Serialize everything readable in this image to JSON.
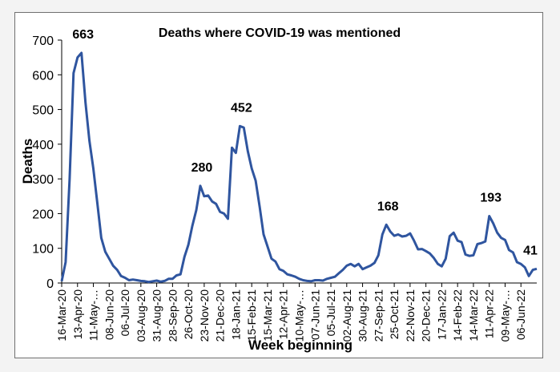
{
  "chart_data": {
    "type": "line",
    "title": "Deaths where COVID-19 was mentioned",
    "xlabel": "Week beginning",
    "ylabel": "Deaths",
    "ylim": [
      0,
      700
    ],
    "yticks": [
      0,
      100,
      200,
      300,
      400,
      500,
      600,
      700
    ],
    "grid": false,
    "legend": "none",
    "line_color": "#2f559f",
    "x_tick_labels": [
      "16-Mar-20",
      "13-Apr-20",
      "11-May-…",
      "08-Jun-20",
      "06-Jul-20",
      "03-Aug-20",
      "31-Aug-20",
      "28-Sep-20",
      "26-Oct-20",
      "23-Nov-20",
      "21-Dec-20",
      "18-Jan-21",
      "15-Feb-21",
      "15-Mar-21",
      "12-Apr-21",
      "10-May-…",
      "07-Jun-21",
      "05-Jul-21",
      "02-Aug-21",
      "30-Aug-21",
      "27-Sep-21",
      "25-Oct-21",
      "22-Nov-21",
      "20-Dec-21",
      "17-Jan-22",
      "14-Feb-22",
      "14-Mar-22",
      "11-Apr-22",
      "09-May-…",
      "06-Jun-22"
    ],
    "series": [
      {
        "name": "Deaths",
        "values": [
          5,
          60,
          300,
          605,
          650,
          663,
          520,
          410,
          330,
          230,
          130,
          90,
          70,
          50,
          38,
          20,
          15,
          8,
          10,
          8,
          6,
          5,
          3,
          5,
          7,
          4,
          6,
          12,
          12,
          22,
          25,
          75,
          110,
          165,
          210,
          280,
          250,
          252,
          235,
          228,
          205,
          200,
          185,
          390,
          375,
          452,
          448,
          380,
          330,
          295,
          220,
          140,
          105,
          70,
          62,
          40,
          35,
          25,
          22,
          18,
          12,
          8,
          6,
          5,
          8,
          8,
          7,
          12,
          15,
          18,
          28,
          38,
          50,
          55,
          48,
          55,
          40,
          45,
          50,
          58,
          80,
          140,
          168,
          148,
          136,
          140,
          134,
          136,
          143,
          122,
          97,
          98,
          92,
          85,
          72,
          55,
          48,
          70,
          135,
          145,
          122,
          118,
          82,
          78,
          80,
          112,
          115,
          120,
          193,
          172,
          145,
          130,
          124,
          95,
          88,
          60,
          55,
          45,
          20,
          38,
          41
        ],
        "annotations": [
          {
            "label": "663",
            "value": 663
          },
          {
            "label": "280",
            "value": 280
          },
          {
            "label": "452",
            "value": 452
          },
          {
            "label": "168",
            "value": 168
          },
          {
            "label": "193",
            "value": 193
          },
          {
            "label": "41",
            "value": 41
          }
        ]
      }
    ]
  }
}
